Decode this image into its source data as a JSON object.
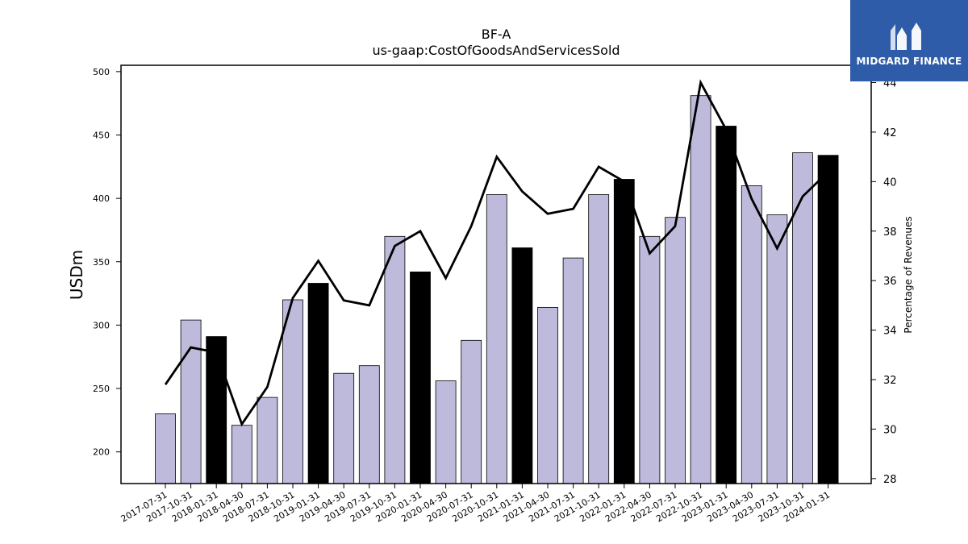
{
  "logo": {
    "text": "MIDGARD FINANCE",
    "icon": "midgard-logo-icon",
    "background": "#2f5ca8"
  },
  "chart_data": {
    "type": "bar",
    "title": "BF-A",
    "subtitle": "us-gaap:CostOfGoodsAndServicesSold",
    "ylabel": "USDm",
    "y2label": "Percentage of Revenues",
    "ylim": [
      175,
      505
    ],
    "y2lim": [
      27.8,
      44.7
    ],
    "yticks": [
      200,
      250,
      300,
      350,
      400,
      450,
      500
    ],
    "y2ticks": [
      28,
      30,
      32,
      34,
      36,
      38,
      40,
      42,
      44
    ],
    "categories": [
      "2017-07-31",
      "2017-10-31",
      "2018-01-31",
      "2018-04-30",
      "2018-07-31",
      "2018-10-31",
      "2019-01-31",
      "2019-04-30",
      "2019-07-31",
      "2019-10-31",
      "2020-01-31",
      "2020-04-30",
      "2020-07-31",
      "2020-10-31",
      "2021-01-31",
      "2021-04-30",
      "2021-07-31",
      "2021-10-31",
      "2022-01-31",
      "2022-04-30",
      "2022-07-31",
      "2022-10-31",
      "2023-01-31",
      "2023-04-30",
      "2023-07-31",
      "2023-10-31",
      "2024-01-31"
    ],
    "series": [
      {
        "kind": "bar",
        "values": [
          230,
          304,
          291,
          221,
          243,
          320,
          333,
          262,
          268,
          370,
          342,
          256,
          288,
          403,
          361,
          314,
          353,
          403,
          415,
          370,
          385,
          481,
          457,
          410,
          387,
          436,
          434
        ],
        "highlight": [
          false,
          false,
          true,
          false,
          false,
          false,
          true,
          false,
          false,
          false,
          true,
          false,
          false,
          false,
          true,
          false,
          false,
          false,
          true,
          false,
          false,
          false,
          true,
          false,
          false,
          false,
          true
        ],
        "color": "#bebadb",
        "highlight_color": "#000000"
      },
      {
        "kind": "line",
        "axis": "right",
        "values": [
          31.8,
          33.3,
          33.1,
          30.2,
          31.7,
          35.3,
          36.8,
          35.2,
          35.0,
          37.4,
          38.0,
          36.1,
          38.2,
          41.0,
          39.6,
          38.7,
          38.9,
          40.6,
          40.0,
          37.1,
          38.2,
          44.0,
          42.1,
          39.3,
          37.3,
          39.4,
          40.4
        ],
        "color": "#000000"
      }
    ],
    "grid": false
  }
}
